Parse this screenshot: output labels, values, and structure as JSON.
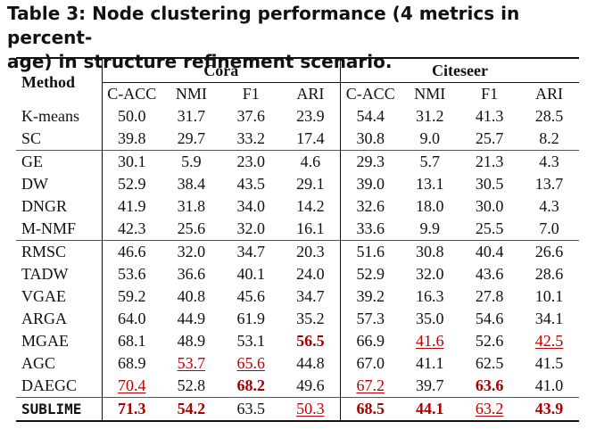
{
  "caption": "Table 3: Node clustering performance (4 metrics in percent-age) in structure refinement scenario.",
  "caption_lines": [
    "Table 3: Node clustering performance (4 metrics in percent-",
    "age) in structure refinement scenario."
  ],
  "header": {
    "method": "Method",
    "groups": [
      "Cora",
      "Citeseer"
    ],
    "metrics": [
      "C-ACC",
      "NMI",
      "F1",
      "ARI",
      "C-ACC",
      "NMI",
      "F1",
      "ARI"
    ]
  },
  "rows": [
    {
      "method": "K-means",
      "values": [
        "50.0",
        "31.7",
        "37.6",
        "23.9",
        "54.4",
        "31.2",
        "41.3",
        "28.5"
      ],
      "styles": [
        "",
        "",
        "",
        "",
        "",
        "",
        "",
        ""
      ]
    },
    {
      "method": "SC",
      "values": [
        "39.8",
        "29.7",
        "33.2",
        "17.4",
        "30.8",
        "9.0",
        "25.7",
        "8.2"
      ],
      "styles": [
        "",
        "",
        "",
        "",
        "",
        "",
        "",
        ""
      ]
    },
    {
      "method": "GE",
      "values": [
        "30.1",
        "5.9",
        "23.0",
        "4.6",
        "29.3",
        "5.7",
        "21.3",
        "4.3"
      ],
      "styles": [
        "",
        "",
        "",
        "",
        "",
        "",
        "",
        ""
      ]
    },
    {
      "method": "DW",
      "values": [
        "52.9",
        "38.4",
        "43.5",
        "29.1",
        "39.0",
        "13.1",
        "30.5",
        "13.7"
      ],
      "styles": [
        "",
        "",
        "",
        "",
        "",
        "",
        "",
        ""
      ]
    },
    {
      "method": "DNGR",
      "values": [
        "41.9",
        "31.8",
        "34.0",
        "14.2",
        "32.6",
        "18.0",
        "30.0",
        "4.3"
      ],
      "styles": [
        "",
        "",
        "",
        "",
        "",
        "",
        "",
        ""
      ]
    },
    {
      "method": "M-NMF",
      "values": [
        "42.3",
        "25.6",
        "32.0",
        "16.1",
        "33.6",
        "9.9",
        "25.5",
        "7.0"
      ],
      "styles": [
        "",
        "",
        "",
        "",
        "",
        "",
        "",
        ""
      ]
    },
    {
      "method": "RMSC",
      "values": [
        "46.6",
        "32.0",
        "34.7",
        "20.3",
        "51.6",
        "30.8",
        "40.4",
        "26.6"
      ],
      "styles": [
        "",
        "",
        "",
        "",
        "",
        "",
        "",
        ""
      ]
    },
    {
      "method": "TADW",
      "values": [
        "53.6",
        "36.6",
        "40.1",
        "24.0",
        "52.9",
        "32.0",
        "43.6",
        "28.6"
      ],
      "styles": [
        "",
        "",
        "",
        "",
        "",
        "",
        "",
        ""
      ]
    },
    {
      "method": "VGAE",
      "values": [
        "59.2",
        "40.8",
        "45.6",
        "34.7",
        "39.2",
        "16.3",
        "27.8",
        "10.1"
      ],
      "styles": [
        "",
        "",
        "",
        "",
        "",
        "",
        "",
        ""
      ]
    },
    {
      "method": "ARGA",
      "values": [
        "64.0",
        "44.9",
        "61.9",
        "35.2",
        "57.3",
        "35.0",
        "54.6",
        "34.1"
      ],
      "styles": [
        "",
        "",
        "",
        "",
        "",
        "",
        "",
        ""
      ]
    },
    {
      "method": "MGAE",
      "values": [
        "68.1",
        "48.9",
        "53.1",
        "56.5",
        "66.9",
        "41.6",
        "52.6",
        "42.5"
      ],
      "styles": [
        "",
        "",
        "",
        "best",
        "",
        "second",
        "",
        "second"
      ]
    },
    {
      "method": "AGC",
      "values": [
        "68.9",
        "53.7",
        "65.6",
        "44.8",
        "67.0",
        "41.1",
        "62.5",
        "41.5"
      ],
      "styles": [
        "",
        "second",
        "second",
        "",
        "",
        "",
        "",
        ""
      ]
    },
    {
      "method": "DAEGC",
      "values": [
        "70.4",
        "52.8",
        "68.2",
        "49.6",
        "67.2",
        "39.7",
        "63.6",
        "41.0"
      ],
      "styles": [
        "second",
        "",
        "best",
        "",
        "second",
        "",
        "best",
        ""
      ]
    },
    {
      "method": "SUBLIME",
      "values": [
        "71.3",
        "54.2",
        "63.5",
        "50.3",
        "68.5",
        "44.1",
        "63.2",
        "43.9"
      ],
      "styles": [
        "best",
        "best",
        "",
        "second",
        "best",
        "best",
        "second",
        "best"
      ]
    }
  ],
  "section_starts": [
    2,
    6,
    13
  ],
  "colors": {
    "best": "#a80000",
    "second": "#c00000",
    "text": "#111111"
  }
}
